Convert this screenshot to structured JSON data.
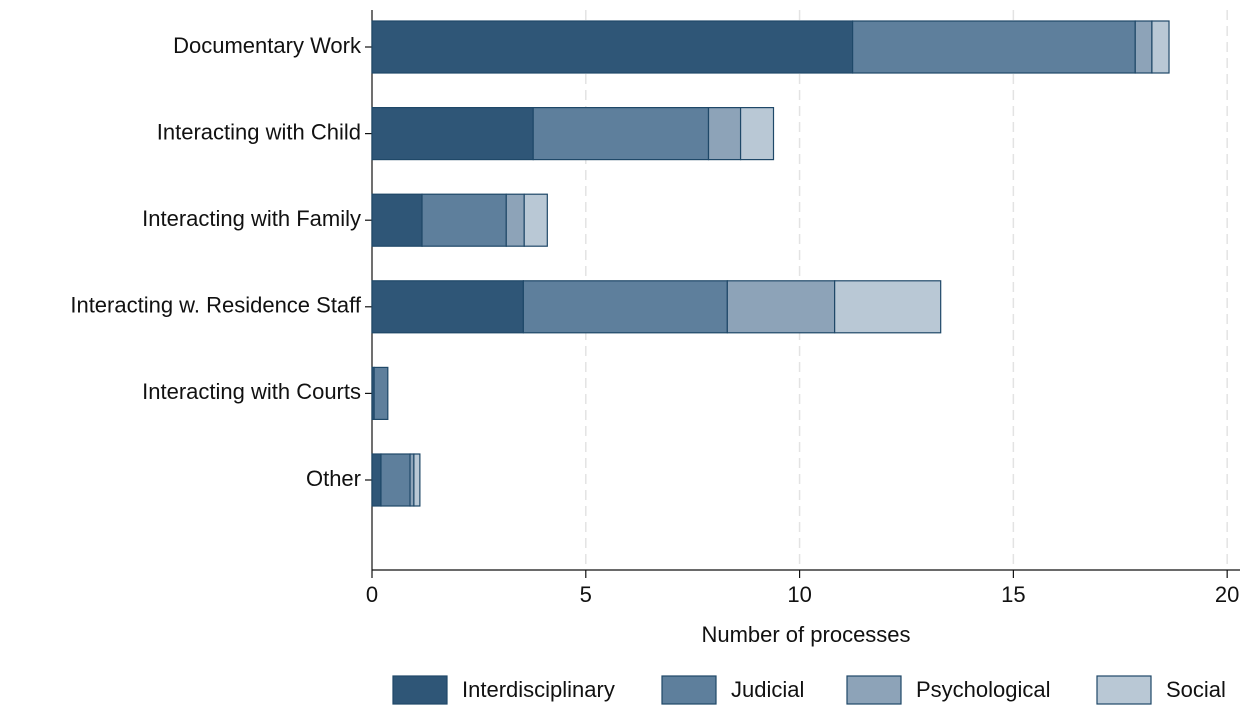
{
  "chart_data": {
    "type": "stacked-barh",
    "xlabel": "Number of processes",
    "categories": [
      "Documentary Work",
      "Interacting with Child",
      "Interacting with Family",
      "Interacting w. Residence Staff",
      "Interacting with Courts",
      "Other"
    ],
    "series": [
      {
        "name": "Interdisciplinary",
        "color": "#2f5677",
        "values": [
          11.24,
          3.77,
          1.17,
          3.54,
          0.05,
          0.21
        ]
      },
      {
        "name": "Judicial",
        "color": "#5e7f9c",
        "values": [
          6.61,
          4.1,
          1.97,
          4.77,
          0.32,
          0.68
        ]
      },
      {
        "name": "Psychological",
        "color": "#8da3b8",
        "values": [
          0.39,
          0.75,
          0.42,
          2.51,
          0,
          0.09
        ]
      },
      {
        "name": "Social",
        "color": "#b9c8d5",
        "values": [
          0.4,
          0.77,
          0.54,
          2.48,
          0,
          0.14
        ]
      }
    ],
    "xlim": [
      0,
      20.3
    ],
    "xticks": [
      0,
      5,
      10,
      15,
      20
    ],
    "grid": true,
    "legend": "bottom"
  }
}
